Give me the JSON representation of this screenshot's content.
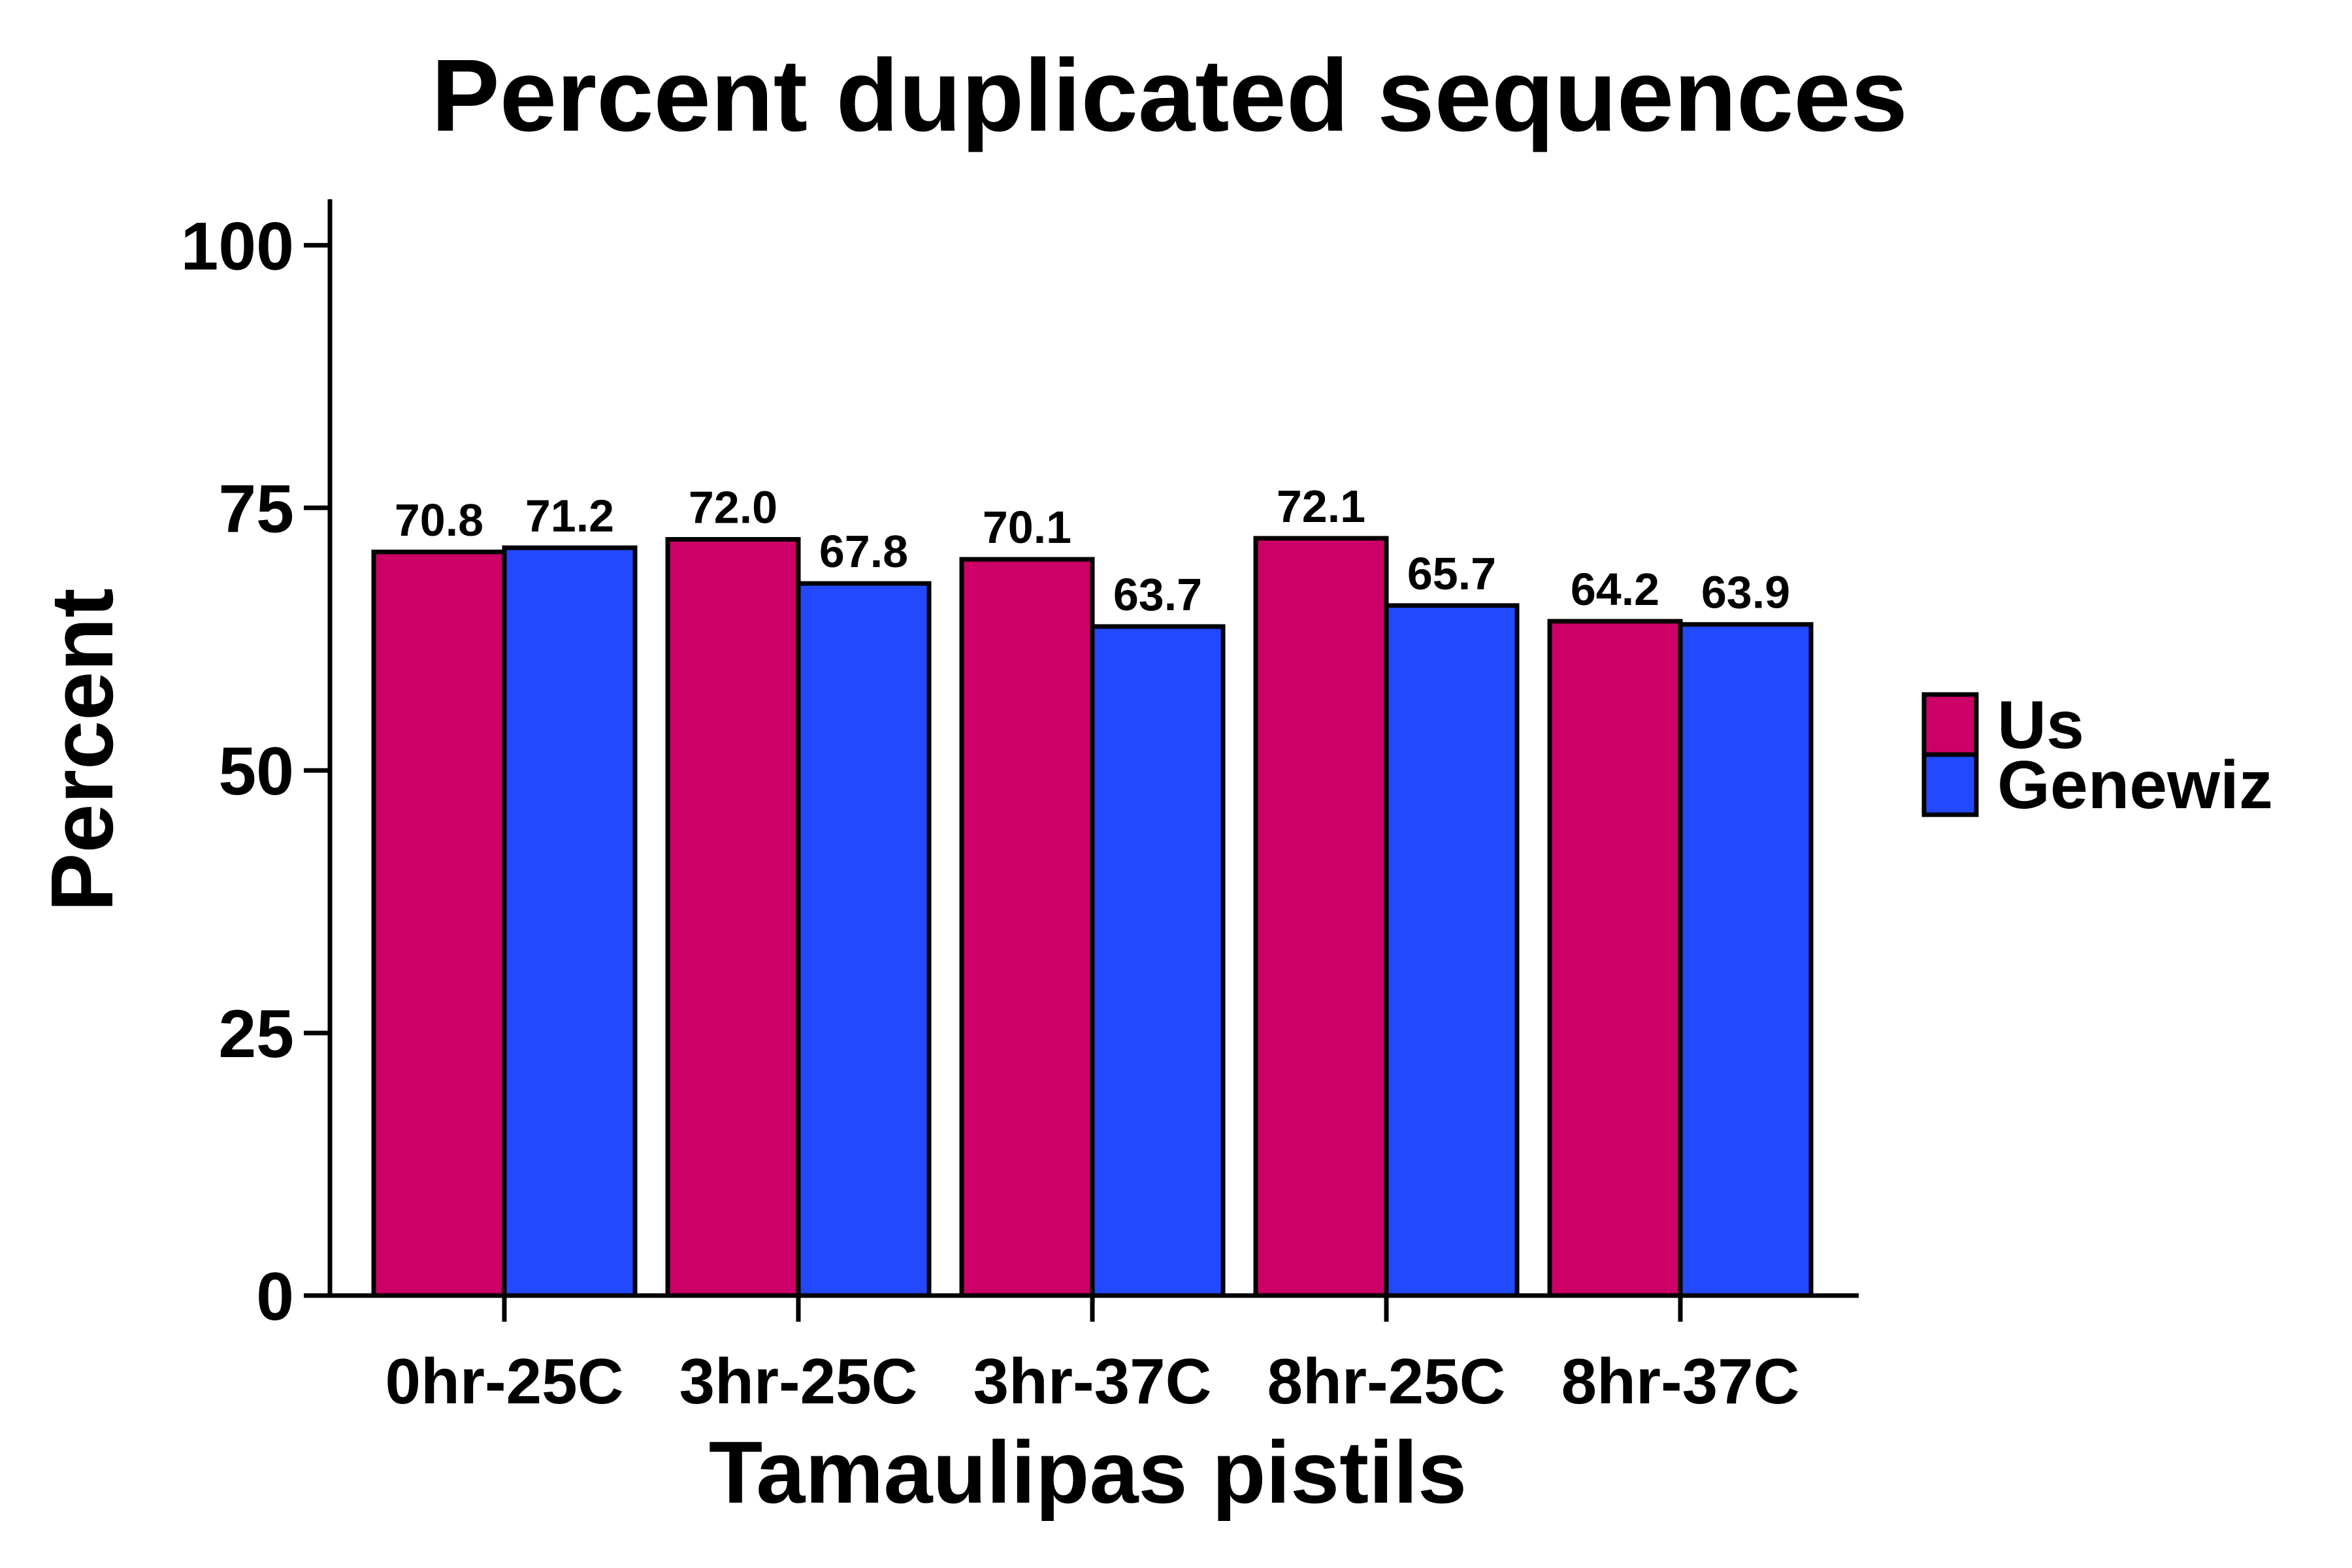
{
  "chart_data": {
    "type": "bar",
    "title": "Percent duplicated sequences",
    "xlabel": "Tamaulipas pistils",
    "ylabel": "Percent",
    "ylim": [
      0,
      105
    ],
    "yticks": [
      "0",
      "25",
      "50",
      "75",
      "100"
    ],
    "categories": [
      "0hr-25C",
      "3hr-25C",
      "3hr-37C",
      "8hr-25C",
      "8hr-37C"
    ],
    "series": [
      {
        "name": "Us",
        "color": "#CC0066",
        "values": [
          70.8,
          72.0,
          70.1,
          72.1,
          64.2
        ],
        "labels": [
          "70.8",
          "72.0",
          "70.1",
          "72.1",
          "64.2"
        ]
      },
      {
        "name": "Genewiz",
        "color": "#2349FF",
        "values": [
          71.2,
          67.8,
          63.7,
          65.7,
          63.9
        ],
        "labels": [
          "71.2",
          "67.8",
          "63.7",
          "65.7",
          "63.9"
        ]
      }
    ],
    "legend_position": "right",
    "grid": false
  }
}
